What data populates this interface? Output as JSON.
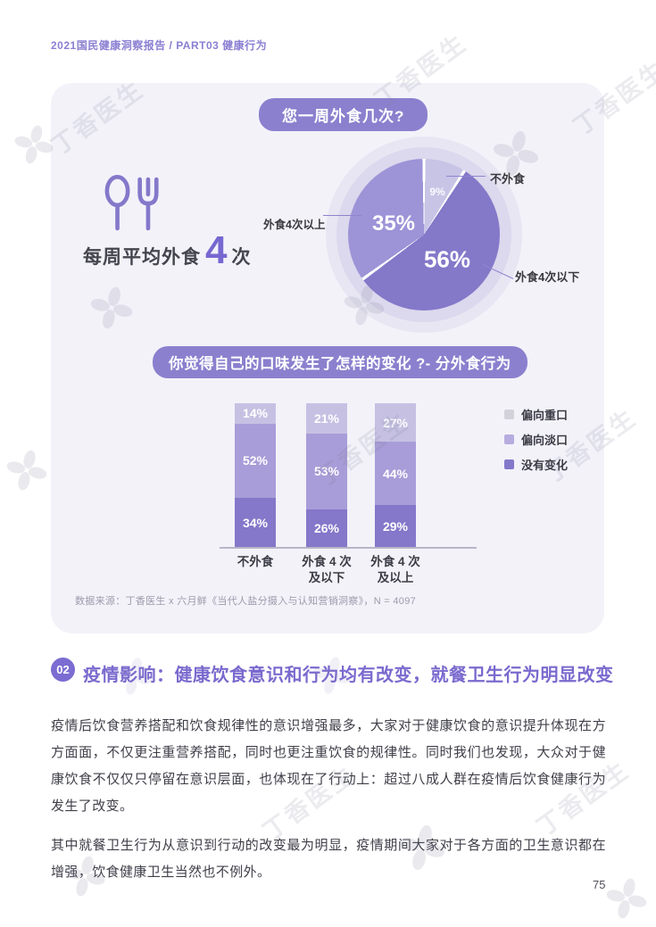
{
  "page": {
    "header": "2021国民健康洞察报告 / PART03 健康行为",
    "page_number": "75",
    "watermark_text": "丁香医生"
  },
  "card": {
    "question1": "您一周外食几次?",
    "stat": {
      "prefix": "每周平均外食",
      "value": "4",
      "suffix": "次"
    },
    "question2": "你觉得自己的口味发生了怎样的变化 ?- 分外食行为",
    "source": "数据来源：丁香医生 x 六月鲜《当代人盐分摄入与认知营销洞察》，N = 4097"
  },
  "chart_data": [
    {
      "type": "pie",
      "title": "您一周外食几次?",
      "slices": [
        {
          "label": "不外食",
          "value": 9,
          "color": "#c8c4e6"
        },
        {
          "label": "外食4次以下",
          "value": 56,
          "color": "#8478c9"
        },
        {
          "label": "外食4次以上",
          "value": 35,
          "color": "#9d93d7"
        }
      ],
      "annotation": "每周平均外食 4 次"
    },
    {
      "type": "bar",
      "stacked": true,
      "title": "你觉得自己的口味发生了怎样的变化 ?- 分外食行为",
      "categories": [
        "不外食",
        "外食 4 次\n及以下",
        "外食 4 次\n及以上"
      ],
      "series": [
        {
          "name": "没有变化",
          "color": "#8577c9",
          "values": [
            34,
            26,
            29
          ]
        },
        {
          "name": "偏向淡口",
          "color": "#a89dd8",
          "values": [
            52,
            53,
            44
          ]
        },
        {
          "name": "偏向重口",
          "color": "#c6c1e3",
          "values": [
            14,
            21,
            27
          ]
        }
      ],
      "legend": [
        {
          "label": "偏向重口",
          "color": "#d3d2da"
        },
        {
          "label": "偏向淡口",
          "color": "#b6acdf"
        },
        {
          "label": "没有变化",
          "color": "#8478ca"
        }
      ],
      "ylim": [
        0,
        100
      ],
      "ylabel": "",
      "xlabel": "",
      "grid": false,
      "legend_position": "right"
    }
  ],
  "section2": {
    "badge": "02",
    "title": "疫情影响：健康饮食意识和行为均有改变，就餐卫生行为明显改变",
    "paragraph1": "疫情后饮食营养搭配和饮食规律性的意识增强最多，大家对于健康饮食的意识提升体现在方方面面，不仅更注重营养搭配，同时也更注重饮食的规律性。同时我们也发现，大众对于健康饮食不仅仅只停留在意识层面，也体现在了行动上：超过八成人群在疫情后饮食健康行为发生了改变。",
    "paragraph2": "其中就餐卫生行为从意识到行动的改变最为明显，疫情期间大家对于各方面的卫生意识都在增强，饮食健康卫生当然也不例外。"
  }
}
